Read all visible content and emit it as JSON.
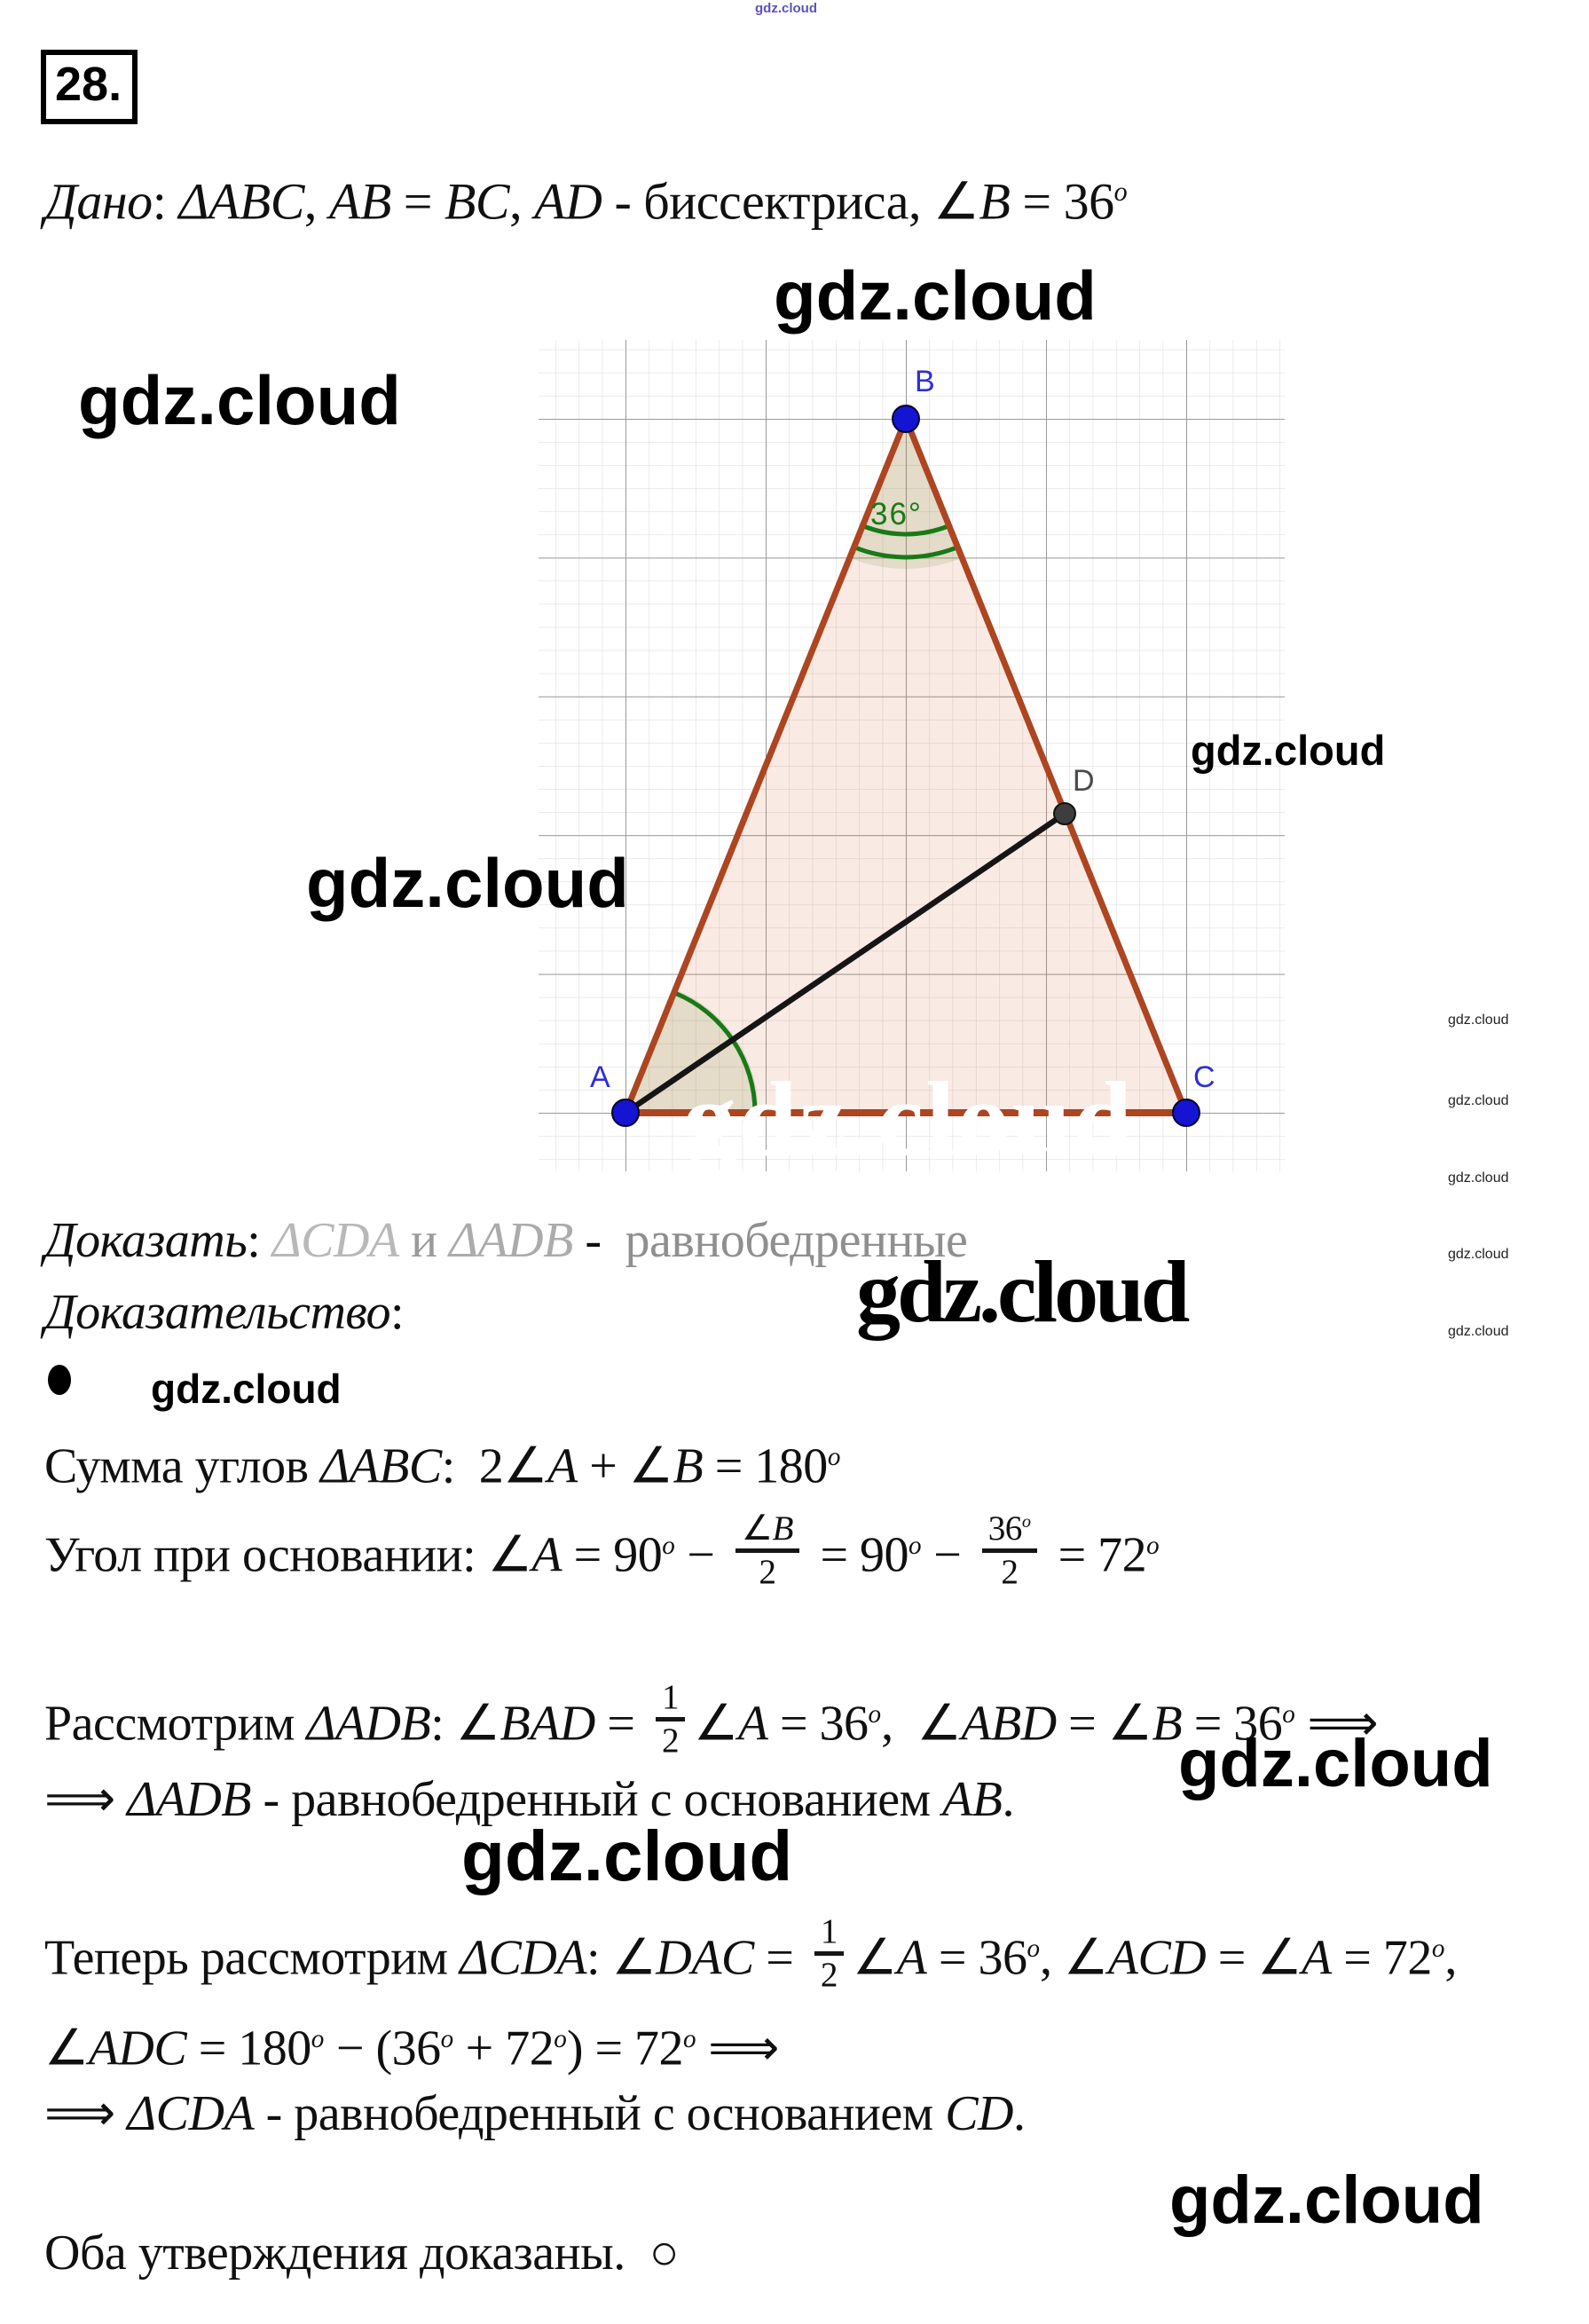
{
  "watermarks": {
    "text": "gdz.cloud"
  },
  "problem": {
    "number": "28."
  },
  "figure": {
    "labels": {
      "a": "A",
      "b": "B",
      "c": "C",
      "d": "D"
    },
    "angle_b": "36°",
    "colors": {
      "edge": "#ad4520",
      "fill": "rgba(205,92,48,0.13)",
      "bisector": "#151515",
      "green": "#177a17",
      "sector": "rgba(120,140,60,0.16)",
      "grid_minor": "#dedede",
      "grid_major": "#9a9a9a",
      "point": "#1414d2",
      "point_d": "#3d3d3d",
      "label_blue": "#2e2ed6",
      "label_d": "#4a4a4a"
    }
  },
  "lines": {
    "given": [
      {
        "v": "Дано",
        "i": true
      },
      {
        "v": ": "
      },
      {
        "v": "ΔABC",
        "i": true
      },
      {
        "v": ", "
      },
      {
        "v": "AB",
        "i": true
      },
      {
        "v": " = "
      },
      {
        "v": "BC",
        "i": true
      },
      {
        "v": ", "
      },
      {
        "v": "AD",
        "i": true
      },
      {
        "v": " - биссектриса, "
      },
      {
        "v": "∠B",
        "i": true
      },
      {
        "v": " = 36"
      },
      {
        "v": "o",
        "sup": true
      }
    ],
    "prove": [
      {
        "v": "Доказать",
        "i": true
      },
      {
        "v": ": "
      },
      {
        "v": "ΔCDA",
        "i": true,
        "c": "#b8b8b8"
      },
      {
        "v": " и ",
        "c": "#9b9b9b"
      },
      {
        "v": "ΔADB",
        "i": true,
        "c": "#ababab"
      },
      {
        "v": " -  "
      },
      {
        "v": "равнобедренные",
        "c": "#8f8f8f"
      }
    ],
    "proof_label": [
      {
        "v": "Доказательство",
        "i": true
      },
      {
        "v": ":"
      }
    ],
    "sum": [
      {
        "v": "Сумма углов "
      },
      {
        "v": "ΔABC",
        "i": true
      },
      {
        "v": ":  2"
      },
      {
        "v": "∠A",
        "i": true
      },
      {
        "v": " + "
      },
      {
        "v": "∠B",
        "i": true
      },
      {
        "v": " = 180"
      },
      {
        "v": "o",
        "sup": true
      }
    ],
    "base_angle": [
      {
        "v": "Угол при основании: "
      },
      {
        "v": "∠A",
        "i": true
      },
      {
        "v": " = 90"
      },
      {
        "v": "o",
        "sup": true
      },
      {
        "v": " − "
      },
      {
        "f": true,
        "n": [
          {
            "v": "∠B",
            "i": true
          }
        ],
        "d": [
          {
            "v": "2"
          }
        ]
      },
      {
        "v": " = 90"
      },
      {
        "v": "o",
        "sup": true
      },
      {
        "v": " − "
      },
      {
        "f": true,
        "n": [
          {
            "v": "36"
          },
          {
            "v": "o",
            "sup": true
          }
        ],
        "d": [
          {
            "v": "2"
          }
        ]
      },
      {
        "v": " = 72"
      },
      {
        "v": "o",
        "sup": true
      }
    ],
    "adb": [
      {
        "v": "Рассмотрим "
      },
      {
        "v": "ΔADB",
        "i": true
      },
      {
        "v": ": "
      },
      {
        "v": "∠BAD",
        "i": true
      },
      {
        "v": " = "
      },
      {
        "f": true,
        "n": [
          {
            "v": "1"
          }
        ],
        "d": [
          {
            "v": "2"
          }
        ]
      },
      {
        "v": "∠A",
        "i": true
      },
      {
        "v": " = 36"
      },
      {
        "v": "o",
        "sup": true
      },
      {
        "v": ",  "
      },
      {
        "v": "∠ABD",
        "i": true
      },
      {
        "v": " = "
      },
      {
        "v": "∠B",
        "i": true
      },
      {
        "v": " = 36"
      },
      {
        "v": "o",
        "sup": true
      },
      {
        "v": " ⟹"
      }
    ],
    "adb2": [
      {
        "v": "⟹ "
      },
      {
        "v": "ΔADB",
        "i": true
      },
      {
        "v": " - равнобедренный с основанием "
      },
      {
        "v": "AB",
        "i": true
      },
      {
        "v": "."
      }
    ],
    "cda": [
      {
        "v": "Теперь рассмотрим "
      },
      {
        "v": "ΔCDA",
        "i": true
      },
      {
        "v": ": "
      },
      {
        "v": "∠DAC",
        "i": true
      },
      {
        "v": " = "
      },
      {
        "f": true,
        "n": [
          {
            "v": "1"
          }
        ],
        "d": [
          {
            "v": "2"
          }
        ]
      },
      {
        "v": "∠A",
        "i": true
      },
      {
        "v": " = 36"
      },
      {
        "v": "o",
        "sup": true
      },
      {
        "v": ", "
      },
      {
        "v": "∠ACD",
        "i": true
      },
      {
        "v": " = "
      },
      {
        "v": "∠A",
        "i": true
      },
      {
        "v": " = 72"
      },
      {
        "v": "o",
        "sup": true
      },
      {
        "v": ","
      }
    ],
    "adc": [
      {
        "v": "∠ADC",
        "i": true
      },
      {
        "v": " = 180"
      },
      {
        "v": "o",
        "sup": true
      },
      {
        "v": " − (36"
      },
      {
        "v": "o",
        "sup": true
      },
      {
        "v": " + 72"
      },
      {
        "v": "o",
        "sup": true
      },
      {
        "v": ") = 72"
      },
      {
        "v": "o",
        "sup": true
      },
      {
        "v": " ⟹"
      }
    ],
    "cda2": [
      {
        "v": "⟹ "
      },
      {
        "v": "ΔCDA",
        "i": true
      },
      {
        "v": " - равнобедренный с основанием "
      },
      {
        "v": "CD",
        "i": true
      },
      {
        "v": "."
      }
    ],
    "final": [
      {
        "v": "Оба утверждения доказаны.  ○"
      }
    ]
  }
}
